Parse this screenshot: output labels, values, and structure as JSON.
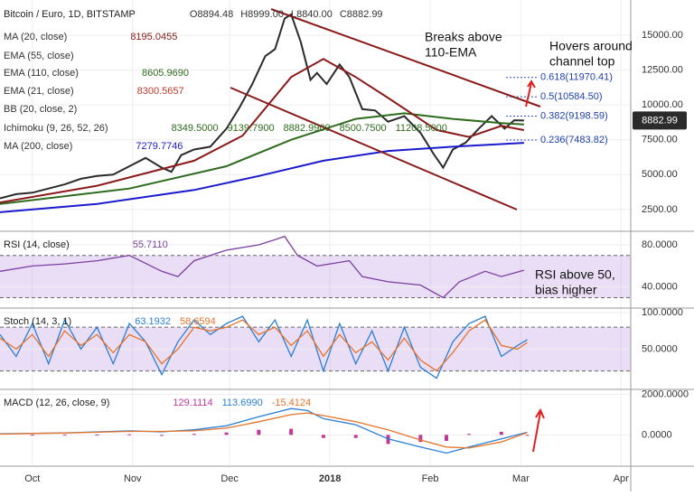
{
  "x_axis": {
    "xlim": [
      -10,
      185
    ],
    "xticks": [
      {
        "value": 0,
        "label": "Oct"
      },
      {
        "value": 31,
        "label": "Nov"
      },
      {
        "value": 61,
        "label": "Dec"
      },
      {
        "value": 92,
        "label": "2018"
      },
      {
        "value": 123,
        "label": "Feb"
      },
      {
        "value": 151,
        "label": "Mar"
      },
      {
        "value": 182,
        "label": "Apr"
      }
    ]
  },
  "chart_data": [
    {
      "type": "line",
      "title": "Bitcoin / Euro, 1D, BITSTAMP",
      "ohlc": [
        "O8894.48",
        "H8999.00",
        "L8840.00",
        "C8882.99"
      ],
      "last_price": 8882.99,
      "last_price_label": "8882.99",
      "ylim": [
        1000,
        17400
      ],
      "yticks": [
        {
          "value": 15000,
          "label": "15000.00"
        },
        {
          "value": 12500,
          "label": "12500.00"
        },
        {
          "value": 10000,
          "label": "10000.00"
        },
        {
          "value": 7500,
          "label": "7500.00"
        },
        {
          "value": 5000,
          "label": "5000.00"
        },
        {
          "value": 2500,
          "label": "2500.00"
        }
      ],
      "indicators": [
        {
          "name": "MA (20, close)",
          "value_labels": [
            "8195.0455"
          ],
          "color": "#8b1a1a"
        },
        {
          "name": "EMA (55, close)",
          "value_labels": [],
          "color": "#999999"
        },
        {
          "name": "EMA (110, close)",
          "value_labels": [
            "8605.9690"
          ],
          "color": "#2e6b1e"
        },
        {
          "name": "EMA (21, close)",
          "value_labels": [
            "8300.5657"
          ],
          "color": "#c0392b"
        },
        {
          "name": "BB (20, close, 2)",
          "value_labels": [],
          "color": "#999999"
        },
        {
          "name": "Ichimoku (9, 26, 52, 26)",
          "value_labels": [
            "8349.5000",
            "9139.7900",
            "8882.9900",
            "8500.7500",
            "11208.5000"
          ],
          "color": "#2e6b1e"
        },
        {
          "name": "MA (200, close)",
          "value_labels": [
            "7279.7746"
          ],
          "color": "#1a1acc"
        }
      ],
      "series": [
        {
          "color": "#2b2b2b",
          "x": [
            -10,
            -5,
            0,
            5,
            10,
            15,
            20,
            25,
            30,
            35,
            40,
            43,
            46,
            50,
            55,
            60,
            64,
            68,
            72,
            75,
            78,
            80,
            83,
            86,
            88,
            91,
            95,
            98,
            102,
            106,
            110,
            115,
            120,
            124,
            127,
            130,
            134,
            138,
            142,
            146,
            149,
            152
          ],
          "values": [
            3300,
            3600,
            3700,
            4000,
            4300,
            4700,
            4900,
            5000,
            5600,
            6200,
            5500,
            5200,
            6400,
            6800,
            7000,
            8300,
            9800,
            11500,
            13500,
            14000,
            16200,
            16500,
            14500,
            11800,
            12300,
            11500,
            12900,
            12000,
            9700,
            9600,
            8800,
            9200,
            8000,
            6500,
            5500,
            6800,
            7300,
            8300,
            9200,
            8300,
            8900,
            8880
          ]
        },
        {
          "color": "#1a1acc",
          "x": [
            -10,
            20,
            50,
            70,
            90,
            110,
            130,
            152
          ],
          "values": [
            2300,
            2900,
            3900,
            4900,
            6000,
            6700,
            7000,
            7280
          ]
        },
        {
          "color": "#2e6b1e",
          "x": [
            -10,
            30,
            60,
            80,
            100,
            115,
            130,
            145,
            152
          ],
          "values": [
            2900,
            4000,
            5600,
            7500,
            9000,
            9400,
            9000,
            8700,
            8606
          ]
        },
        {
          "color": "#8b1a1a",
          "x": [
            -10,
            20,
            50,
            65,
            80,
            90,
            100,
            110,
            125,
            135,
            145,
            152
          ],
          "values": [
            3000,
            4200,
            6000,
            7800,
            12000,
            13300,
            12000,
            10500,
            8200,
            7700,
            8500,
            8195
          ]
        }
      ],
      "fib_levels": [
        {
          "value": 11970.41,
          "label": "0.618(11970.41)"
        },
        {
          "value": 10584.5,
          "label": "0.5(10584.50)"
        },
        {
          "value": 9198.59,
          "label": "0.382(9198.59)"
        },
        {
          "value": 7483.82,
          "label": "0.236(7483.82)"
        }
      ],
      "annotations": [
        [
          "Breaks above",
          "110-EMA"
        ],
        [
          "Hovers around",
          "channel top"
        ]
      ]
    },
    {
      "type": "line",
      "title": "RSI (14, close)",
      "value_labels": [
        "55.7110"
      ],
      "ylim": [
        21,
        92
      ],
      "yticks": [
        {
          "value": 80,
          "label": "80.0000"
        },
        {
          "value": 40,
          "label": "40.0000"
        }
      ],
      "band": [
        30,
        70
      ],
      "series": [
        {
          "color": "#7b3fa0",
          "x": [
            -10,
            0,
            10,
            20,
            30,
            40,
            45,
            50,
            60,
            70,
            75,
            78,
            82,
            88,
            92,
            98,
            102,
            110,
            120,
            127,
            132,
            140,
            145,
            152
          ],
          "values": [
            55,
            60,
            62,
            65,
            70,
            55,
            50,
            65,
            75,
            80,
            85,
            88,
            70,
            60,
            62,
            65,
            50,
            45,
            42,
            30,
            45,
            55,
            50,
            56
          ]
        }
      ],
      "annotations": [
        [
          "RSI above 50,",
          "bias higher"
        ]
      ]
    },
    {
      "type": "line",
      "title": "Stoch (14, 3, 1)",
      "value_labels": [
        "63.1932",
        "58.6594"
      ],
      "ylim": [
        -4,
        105
      ],
      "yticks": [
        {
          "value": 100,
          "label": "100.0000"
        },
        {
          "value": 50,
          "label": "50.0000"
        }
      ],
      "band": [
        20,
        80
      ],
      "series": [
        {
          "color": "#2a7fd4",
          "x": [
            -10,
            -5,
            0,
            5,
            10,
            15,
            20,
            25,
            30,
            35,
            40,
            45,
            50,
            55,
            60,
            65,
            70,
            75,
            80,
            85,
            90,
            95,
            100,
            105,
            110,
            115,
            120,
            125,
            130,
            135,
            140,
            145,
            150,
            153
          ],
          "values": [
            70,
            40,
            85,
            30,
            90,
            50,
            80,
            30,
            85,
            60,
            15,
            60,
            90,
            70,
            85,
            95,
            60,
            90,
            40,
            90,
            20,
            85,
            30,
            75,
            20,
            80,
            25,
            10,
            60,
            85,
            95,
            40,
            55,
            63
          ]
        },
        {
          "color": "#e8742a",
          "x": [
            -10,
            -5,
            0,
            5,
            10,
            15,
            20,
            25,
            30,
            35,
            40,
            45,
            50,
            55,
            60,
            65,
            70,
            75,
            80,
            85,
            90,
            95,
            100,
            105,
            110,
            115,
            120,
            125,
            130,
            135,
            140,
            145,
            150,
            153
          ],
          "values": [
            65,
            50,
            70,
            40,
            75,
            55,
            70,
            45,
            70,
            60,
            30,
            50,
            80,
            75,
            80,
            90,
            70,
            80,
            55,
            75,
            40,
            70,
            45,
            60,
            35,
            65,
            35,
            20,
            45,
            75,
            90,
            55,
            50,
            59
          ]
        }
      ]
    },
    {
      "type": "line",
      "title": "MACD (12, 26, close, 9)",
      "value_labels": [
        "129.1114",
        "113.6990",
        "-15.4124"
      ],
      "ylim": [
        -1500,
        2200
      ],
      "yticks": [
        {
          "value": 2000,
          "label": "2000.0000"
        },
        {
          "value": 0,
          "label": "0.0000"
        }
      ],
      "series": [
        {
          "color": "#2a7fd4",
          "x": [
            -10,
            0,
            10,
            20,
            30,
            40,
            50,
            60,
            70,
            80,
            85,
            90,
            100,
            110,
            120,
            128,
            135,
            145,
            153
          ],
          "values": [
            50,
            80,
            100,
            150,
            200,
            150,
            250,
            450,
            900,
            1300,
            1200,
            800,
            500,
            -200,
            -600,
            -900,
            -600,
            -200,
            129
          ]
        },
        {
          "color": "#e8742a",
          "x": [
            -10,
            0,
            10,
            20,
            30,
            40,
            50,
            60,
            70,
            80,
            85,
            90,
            100,
            110,
            120,
            128,
            135,
            145,
            153
          ],
          "values": [
            40,
            70,
            90,
            130,
            170,
            170,
            200,
            330,
            650,
            1000,
            1080,
            950,
            650,
            250,
            -250,
            -600,
            -650,
            -350,
            114
          ]
        }
      ],
      "histogram": {
        "color": "#c0399a",
        "x": [
          0,
          10,
          20,
          30,
          40,
          50,
          60,
          70,
          80,
          90,
          100,
          110,
          120,
          128,
          135,
          145,
          153
        ],
        "values": [
          10,
          10,
          20,
          30,
          -20,
          50,
          120,
          250,
          300,
          -150,
          -150,
          -450,
          -350,
          -300,
          50,
          150,
          -15
        ]
      }
    }
  ]
}
